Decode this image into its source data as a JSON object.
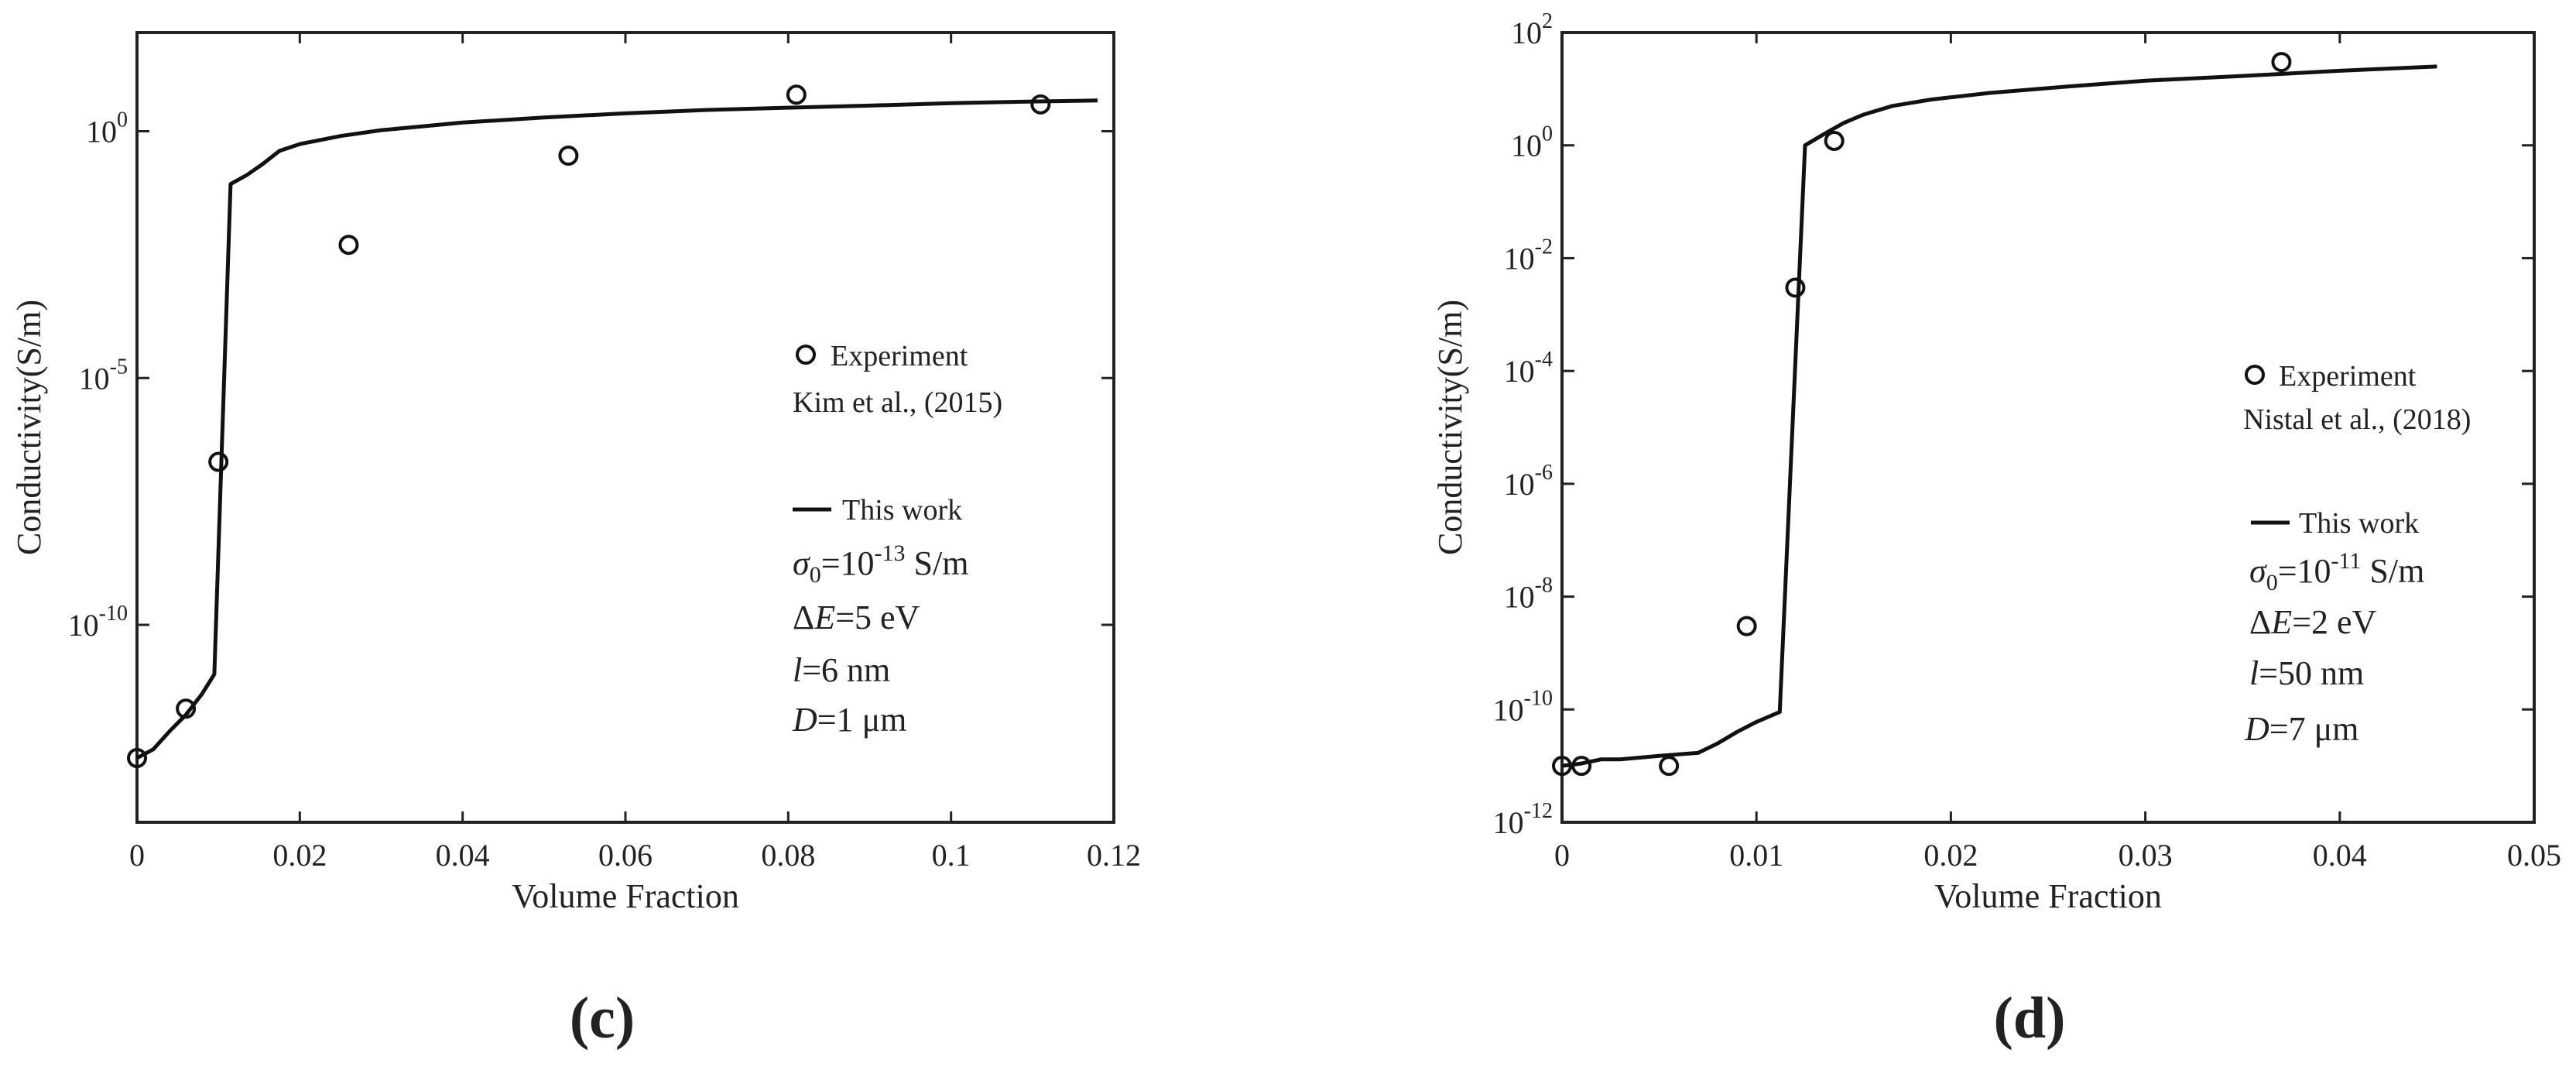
{
  "chart_data": [
    {
      "type": "scatter",
      "panel_label": "(c)",
      "xlabel": "Volume Fraction",
      "ylabel": "Conductivity(S/m)",
      "xlim": [
        0,
        0.12
      ],
      "ylim": [
        1e-14,
        100.0
      ],
      "yscale": "log",
      "grid": false,
      "x_ticks": [
        "0",
        "0.02",
        "0.04",
        "0.06",
        "0.08",
        "0.1",
        "0.12"
      ],
      "x_tick_values": [
        0,
        0.02,
        0.04,
        0.06,
        0.08,
        0.1,
        0.12
      ],
      "y_ticks": [
        {
          "base": "10",
          "exp": "0",
          "value": 1
        },
        {
          "base": "10",
          "exp": "-5",
          "value": 1e-05
        },
        {
          "base": "10",
          "exp": "-10",
          "value": 1e-10
        }
      ],
      "series": [
        {
          "name": "Experiment",
          "kind": "markers",
          "x": [
            0.0,
            0.006,
            0.01,
            0.026,
            0.053,
            0.081,
            0.111
          ],
          "y": [
            2e-13,
            2e-12,
            2e-07,
            0.005,
            0.32,
            5.5,
            3.5
          ]
        },
        {
          "name": "This work",
          "kind": "line",
          "x": [
            0.0,
            0.002,
            0.004,
            0.006,
            0.008,
            0.0095,
            0.0115,
            0.0135,
            0.0155,
            0.0175,
            0.02,
            0.025,
            0.03,
            0.035,
            0.04,
            0.05,
            0.06,
            0.07,
            0.08,
            0.09,
            0.1,
            0.11,
            0.118
          ],
          "y": [
            2e-13,
            3e-13,
            7e-13,
            1.5e-12,
            4e-12,
            1e-11,
            0.085,
            0.13,
            0.22,
            0.4,
            0.55,
            0.8,
            1.05,
            1.25,
            1.5,
            1.9,
            2.3,
            2.7,
            3.0,
            3.3,
            3.7,
            4.0,
            4.2
          ]
        }
      ],
      "legend": {
        "experiment_label": "Experiment",
        "experiment_source": "Kim et al., (2015)",
        "model_label": "This work"
      },
      "params": {
        "sigma_sym": "σ",
        "sigma_sub": "0",
        "sigma_pre": "=10",
        "sigma_exp": "-13",
        "sigma_unit": " S/m",
        "dE_sym": "Δ",
        "dE_var": "E",
        "dE_val": "=5 eV",
        "l_var": "l",
        "l_val": "=6 nm",
        "D_var": "D",
        "D_val": "=1 μm"
      }
    },
    {
      "type": "scatter",
      "panel_label": "(d)",
      "xlabel": "Volume Fraction",
      "ylabel": "Conductivity(S/m)",
      "xlim": [
        0,
        0.05
      ],
      "ylim": [
        1e-12,
        100.0
      ],
      "yscale": "log",
      "grid": false,
      "x_ticks": [
        "0",
        "0.01",
        "0.02",
        "0.03",
        "0.04",
        "0.05"
      ],
      "x_tick_values": [
        0,
        0.01,
        0.02,
        0.03,
        0.04,
        0.05
      ],
      "y_ticks": [
        {
          "base": "10",
          "exp": "2",
          "value": 100.0
        },
        {
          "base": "10",
          "exp": "0",
          "value": 1
        },
        {
          "base": "10",
          "exp": "-2",
          "value": 0.01
        },
        {
          "base": "10",
          "exp": "-4",
          "value": 0.0001
        },
        {
          "base": "10",
          "exp": "-6",
          "value": 1e-06
        },
        {
          "base": "10",
          "exp": "-8",
          "value": 1e-08
        },
        {
          "base": "10",
          "exp": "-10",
          "value": 1e-10
        },
        {
          "base": "10",
          "exp": "-12",
          "value": 1e-12
        }
      ],
      "series": [
        {
          "name": "Experiment",
          "kind": "markers",
          "x": [
            0.0,
            0.001,
            0.0055,
            0.0095,
            0.012,
            0.014,
            0.037
          ],
          "y": [
            1e-11,
            1e-11,
            1e-11,
            3e-09,
            0.003,
            1.2,
            30
          ]
        },
        {
          "name": "This work",
          "kind": "line",
          "x": [
            0.0,
            0.001,
            0.002,
            0.003,
            0.004,
            0.005,
            0.006,
            0.007,
            0.008,
            0.009,
            0.01,
            0.0112,
            0.0125,
            0.0135,
            0.0145,
            0.0155,
            0.017,
            0.019,
            0.022,
            0.026,
            0.03,
            0.035,
            0.04,
            0.045
          ],
          "y": [
            1e-11,
            1.1e-11,
            1.3e-11,
            1.3e-11,
            1.4e-11,
            1.5e-11,
            1.6e-11,
            1.7e-11,
            2.5e-11,
            4e-11,
            6e-11,
            9e-11,
            1.0,
            1.6,
            2.5,
            3.5,
            5,
            6.5,
            8.5,
            11,
            14,
            17,
            21,
            25
          ]
        }
      ],
      "legend": {
        "experiment_label": "Experiment",
        "experiment_source": "Nistal et al., (2018)",
        "model_label": "This work"
      },
      "params": {
        "sigma_sym": "σ",
        "sigma_sub": "0",
        "sigma_pre": "=10",
        "sigma_exp": "-11",
        "sigma_unit": " S/m",
        "dE_sym": "Δ",
        "dE_var": "E",
        "dE_val": "=2 eV",
        "l_var": "l",
        "l_val": "=50 nm",
        "D_var": "D",
        "D_val": "=7 μm"
      }
    }
  ]
}
